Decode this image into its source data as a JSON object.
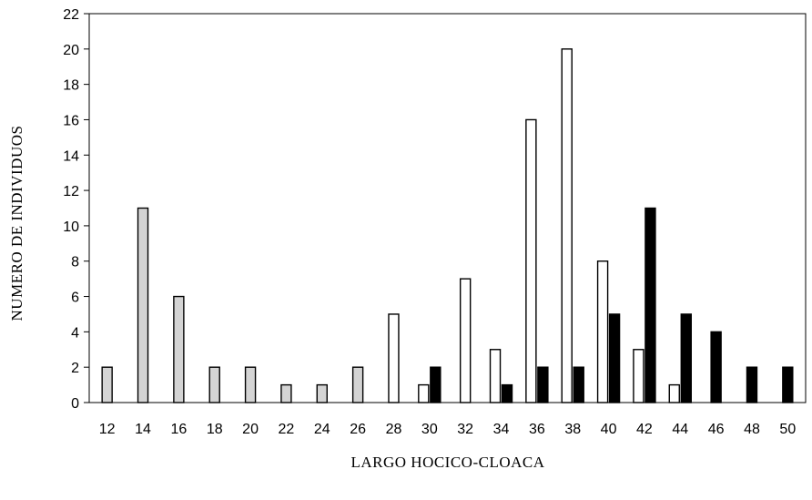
{
  "chart_data": {
    "type": "bar",
    "title": "",
    "xlabel": "LARGO HOCICO-CLOACA",
    "ylabel": "NUMERO DE INDIVIDUOS",
    "ylim": [
      0,
      22
    ],
    "yticks": [
      0,
      2,
      4,
      6,
      8,
      10,
      12,
      14,
      16,
      18,
      20,
      22
    ],
    "categories": [
      "12",
      "14",
      "16",
      "18",
      "20",
      "22",
      "24",
      "26",
      "28",
      "30",
      "32",
      "34",
      "36",
      "38",
      "40",
      "42",
      "44",
      "46",
      "48",
      "50"
    ],
    "grid": false,
    "legend": "none",
    "series": [
      {
        "fill": "#d4d4d4",
        "values": [
          2,
          11,
          6,
          2,
          2,
          1,
          1,
          2,
          0,
          0,
          0,
          0,
          0,
          0,
          0,
          0,
          0,
          0,
          0,
          0
        ]
      },
      {
        "fill": "#ffffff",
        "values": [
          0,
          0,
          0,
          0,
          0,
          0,
          0,
          0,
          5,
          1,
          7,
          3,
          16,
          20,
          8,
          3,
          1,
          0,
          0,
          0
        ]
      },
      {
        "fill": "#000000",
        "values": [
          0,
          0,
          0,
          0,
          0,
          0,
          0,
          0,
          0,
          2,
          0,
          1,
          2,
          2,
          5,
          11,
          5,
          4,
          2,
          2
        ]
      }
    ]
  }
}
